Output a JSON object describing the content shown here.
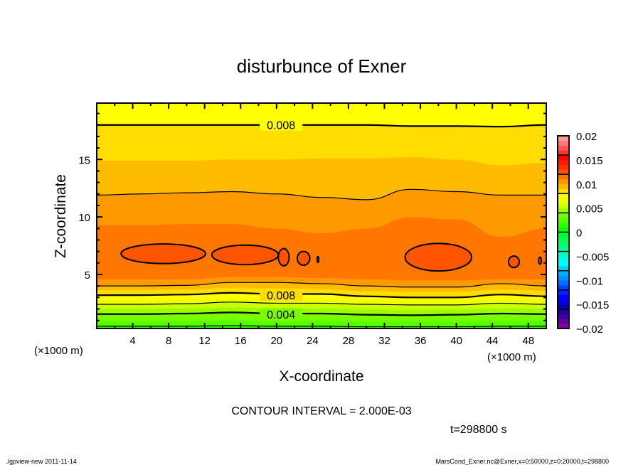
{
  "chart_data": {
    "type": "heatmap",
    "subtype": "filled-contour",
    "title": "disturbunce of Exner",
    "xlabel": "X-coordinate",
    "ylabel": "Z-coordinate",
    "x_unit_left": "(×1000 m)",
    "x_unit_right": "(×1000 m)",
    "xlim": [
      0,
      50
    ],
    "ylim": [
      0.3,
      19.9
    ],
    "xticks": [
      4,
      8,
      12,
      16,
      20,
      24,
      28,
      32,
      36,
      40,
      44,
      48
    ],
    "yticks": [
      5,
      10,
      15
    ],
    "contour_interval_text": "CONTOUR INTERVAL = 2.000E-03",
    "time_text": "t=298800 s",
    "colorbar": {
      "range": [
        -0.02,
        0.02
      ],
      "step": 0.001,
      "tick_labels": [
        "0.02",
        "0.015",
        "0.01",
        "0.005",
        "0",
        "-0.005",
        "-0.01",
        "-0.015",
        "-0.02"
      ],
      "tick_values": [
        0.02,
        0.015,
        0.01,
        0.005,
        0,
        -0.005,
        -0.01,
        -0.015,
        -0.02
      ],
      "colors": [
        "#8000a0",
        "#6000a0",
        "#4000a0",
        "#2000a0",
        "#0000b0",
        "#0000e0",
        "#0000ff",
        "#0020ff",
        "#0040ff",
        "#0070ff",
        "#0090ff",
        "#00b0ff",
        "#00d0ff",
        "#00ffff",
        "#00ffe0",
        "#00ffc0",
        "#00ff90",
        "#00ff70",
        "#00ff50",
        "#00ff30",
        "#10ff00",
        "#30ff00",
        "#55ff00",
        "#77ff00",
        "#99ff00",
        "#ccff00",
        "#eeff00",
        "#ffff00",
        "#ffdd00",
        "#ffbb00",
        "#ff9900",
        "#ff7700",
        "#ff5500",
        "#ff3300",
        "#ff1a00",
        "#ff0000",
        "#ff3030",
        "#ff5555",
        "#ff7777",
        "#ff9999"
      ]
    },
    "x_samples": [
      0,
      5,
      10,
      15,
      20,
      25,
      30,
      35,
      40,
      45,
      50
    ],
    "surfaces": [
      {
        "level": 0.002,
        "z": [
          0.5,
          0.5,
          0.5,
          0.55,
          0.5,
          0.5,
          0.45,
          0.45,
          0.45,
          0.5,
          0.5
        ]
      },
      {
        "level": 0.003,
        "z": [
          0.95,
          0.95,
          0.95,
          1.0,
          0.95,
          0.95,
          0.9,
          0.9,
          0.9,
          0.95,
          0.95
        ]
      },
      {
        "level": 0.004,
        "z": [
          1.55,
          1.55,
          1.6,
          1.7,
          1.6,
          1.6,
          1.5,
          1.45,
          1.5,
          1.6,
          1.55
        ]
      },
      {
        "level": 0.005,
        "z": [
          2.0,
          2.0,
          2.05,
          2.15,
          2.05,
          2.05,
          1.95,
          1.9,
          1.95,
          2.05,
          2.0
        ]
      },
      {
        "level": 0.006,
        "z": [
          2.4,
          2.4,
          2.45,
          2.6,
          2.5,
          2.5,
          2.4,
          2.35,
          2.35,
          2.5,
          2.4
        ]
      },
      {
        "level": 0.007,
        "z": [
          2.8,
          2.8,
          2.85,
          2.95,
          2.9,
          2.9,
          2.75,
          2.7,
          2.7,
          2.85,
          2.75
        ]
      },
      {
        "level": 0.008,
        "z": [
          3.2,
          3.2,
          3.25,
          3.4,
          3.3,
          3.3,
          3.1,
          3.0,
          3.0,
          3.25,
          3.1
        ]
      },
      {
        "level": 0.009,
        "z": [
          3.65,
          3.65,
          3.7,
          3.85,
          3.8,
          3.75,
          3.55,
          3.5,
          3.5,
          3.7,
          3.6
        ]
      },
      {
        "level": 0.01,
        "z": [
          4.0,
          4.0,
          4.05,
          4.3,
          4.3,
          4.2,
          4.0,
          3.9,
          3.9,
          4.2,
          4.0
        ]
      },
      {
        "level": 0.011,
        "z": [
          4.6,
          4.6,
          4.6,
          4.8,
          4.8,
          4.7,
          4.6,
          4.5,
          4.5,
          4.6,
          4.6
        ]
      },
      {
        "level": 0.011,
        "z": [
          9.3,
          9.3,
          9.4,
          9.4,
          9.0,
          8.6,
          9.0,
          10.0,
          9.8,
          8.3,
          9.0
        ]
      },
      {
        "level": 0.01,
        "z": [
          11.9,
          12.0,
          12.1,
          12.2,
          12.0,
          11.7,
          11.5,
          12.4,
          12.2,
          11.9,
          11.9
        ]
      },
      {
        "level": 0.009,
        "z": [
          14.9,
          14.9,
          14.9,
          15.0,
          15.0,
          15.1,
          15.1,
          15.2,
          15.0,
          14.5,
          14.7
        ]
      },
      {
        "level": 0.008,
        "z": [
          18.0,
          18.0,
          18.0,
          18.0,
          18.0,
          18.0,
          18.0,
          17.9,
          17.9,
          17.85,
          18.0
        ]
      }
    ],
    "band_lows": [
      0.001,
      0.002,
      0.003,
      0.004,
      0.005,
      0.006,
      0.007,
      0.008,
      0.009,
      0.01,
      0.011,
      0.01,
      0.009,
      0.008,
      0.007
    ],
    "max_cells": {
      "level": 0.012,
      "cells": [
        {
          "x": 7.4,
          "z": 6.8,
          "rx": 4.7,
          "rz": 0.85
        },
        {
          "x": 16.5,
          "z": 6.7,
          "rx": 3.7,
          "rz": 0.85
        },
        {
          "x": 20.8,
          "z": 6.5,
          "rx": 0.6,
          "rz": 0.75
        },
        {
          "x": 23.0,
          "z": 6.4,
          "rx": 0.7,
          "rz": 0.6
        },
        {
          "x": 24.6,
          "z": 6.3,
          "rx": 0.1,
          "rz": 0.25
        },
        {
          "x": 38.0,
          "z": 6.5,
          "rx": 3.7,
          "rz": 1.2
        },
        {
          "x": 46.4,
          "z": 6.1,
          "rx": 0.6,
          "rz": 0.5
        },
        {
          "x": 49.3,
          "z": 6.2,
          "rx": 0.15,
          "rz": 0.3
        }
      ]
    },
    "contour_labels": [
      {
        "text": "0.008",
        "x": 20.5,
        "z": 18.0
      },
      {
        "text": "0.008",
        "x": 20.5,
        "z": 3.2
      },
      {
        "text": "0.004",
        "x": 20.5,
        "z": 1.55
      }
    ]
  },
  "footer": {
    "left": "./gpview-new  2011-11-14",
    "right": "MarsCond_Exner.nc@Exner,x=0:50000,z=0:20000,t=298800"
  }
}
